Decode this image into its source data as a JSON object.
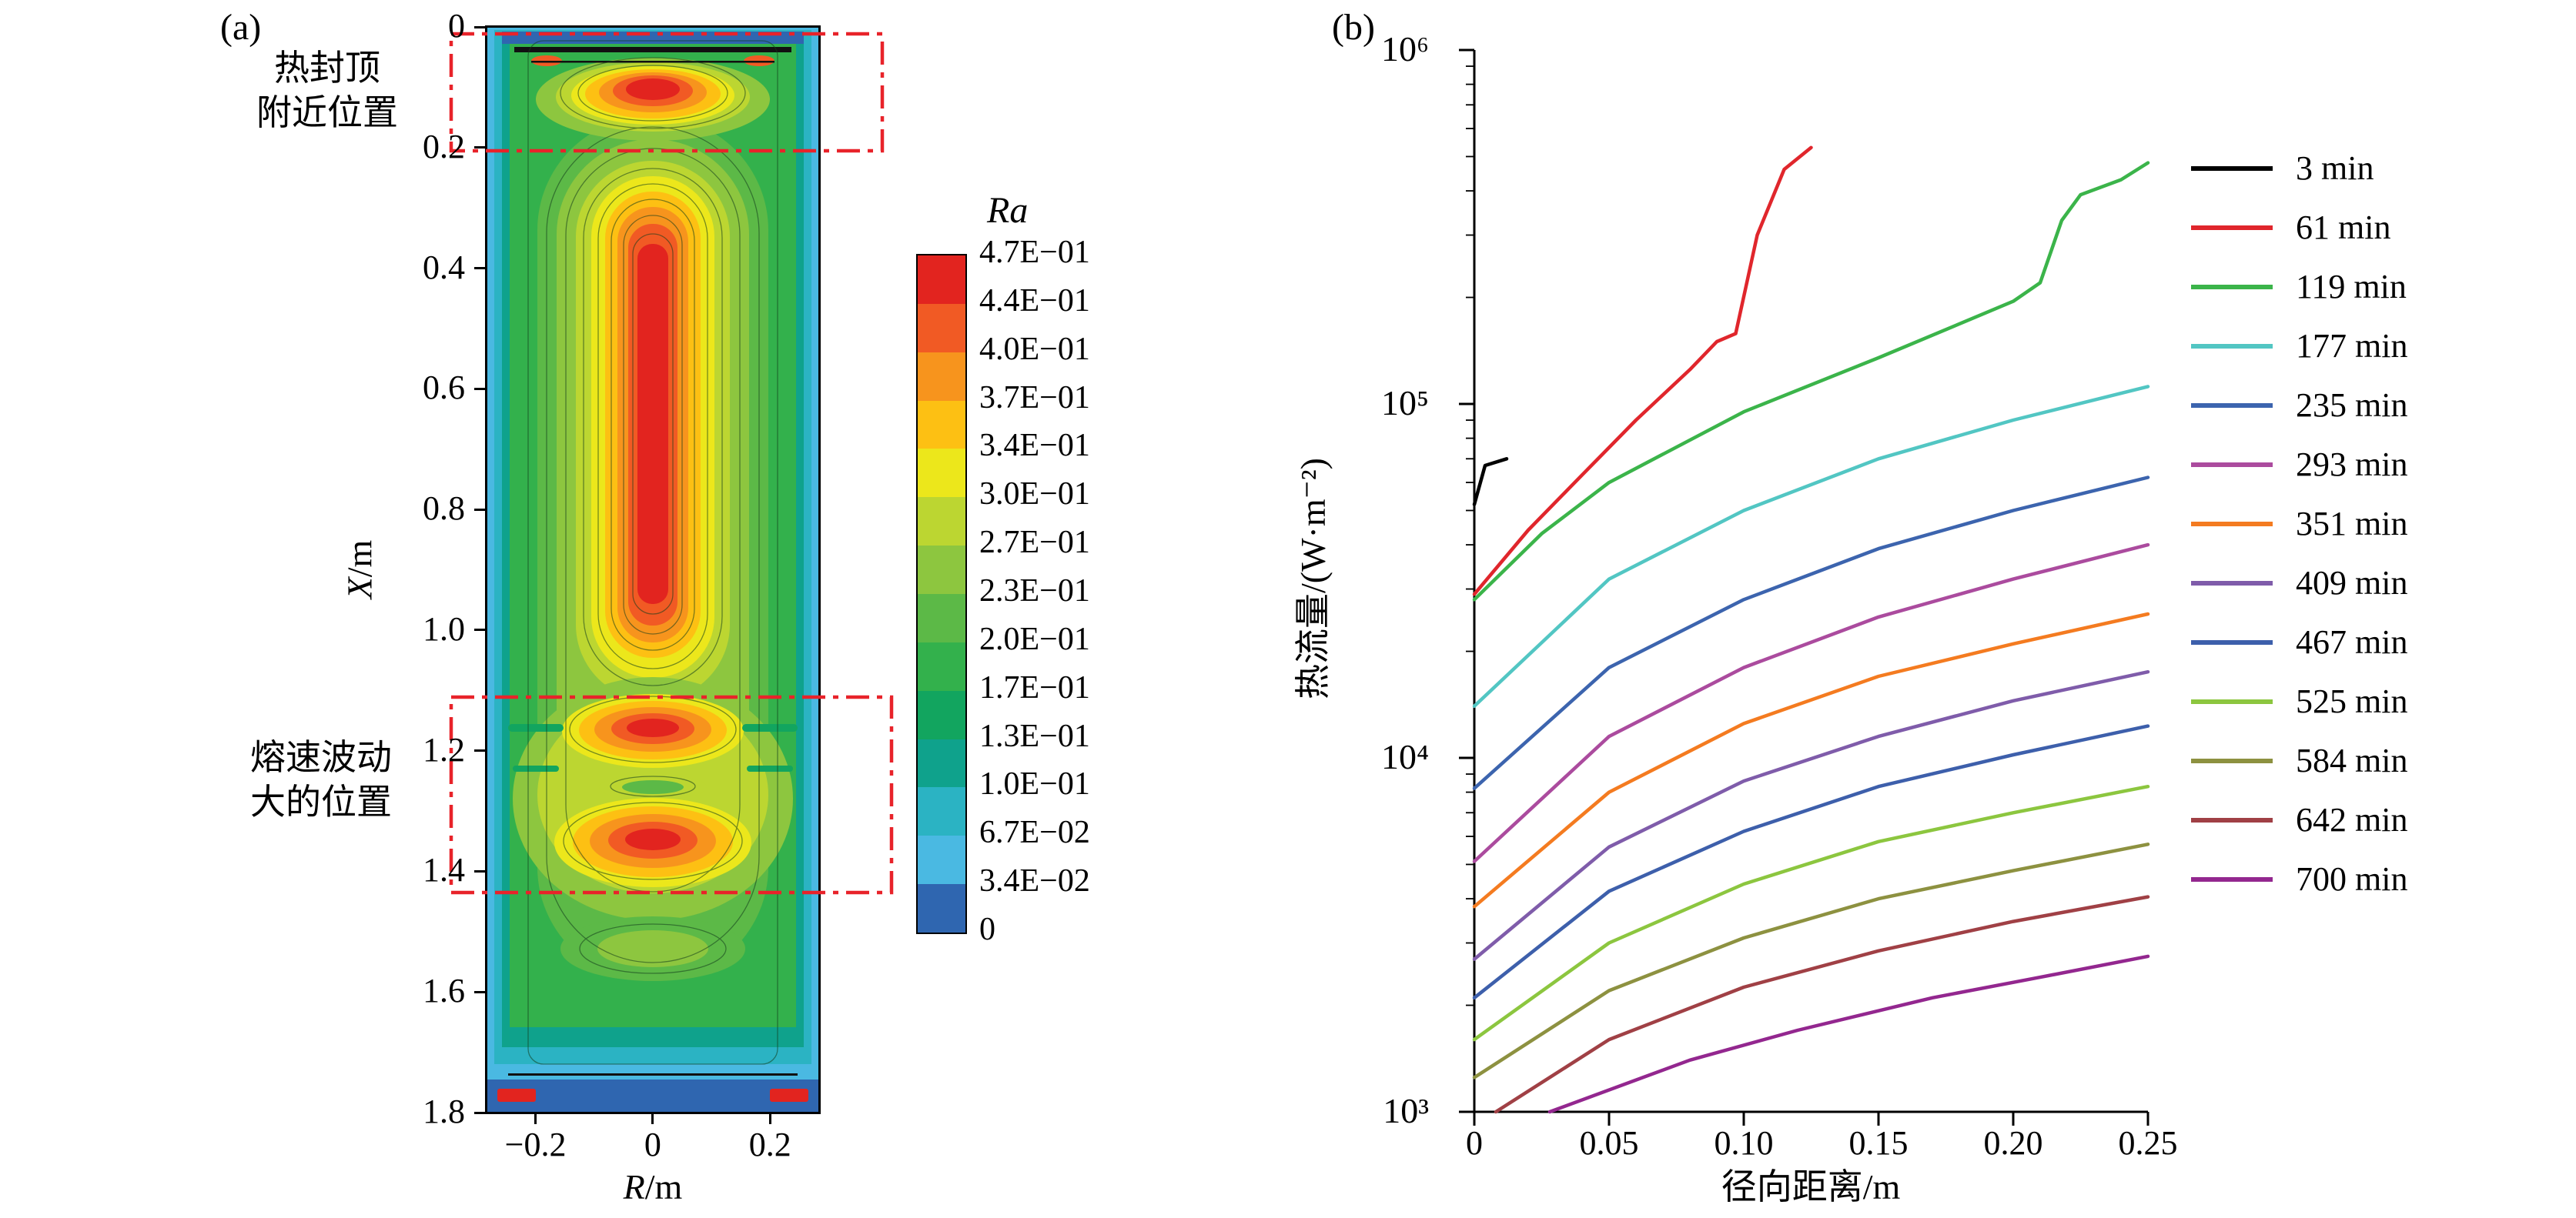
{
  "figure": {
    "panel_a_tag": "(a)",
    "panel_b_tag": "(b)"
  },
  "panelA": {
    "annotations": {
      "top_line1": "热封顶",
      "top_line2": "附近位置",
      "bottom_line1": "熔速波动",
      "bottom_line2": "大的位置"
    },
    "axis": {
      "y_label_var": "X",
      "y_label_unit": "/m",
      "x_label_var": "R",
      "x_label_unit": "/m",
      "y_ticks": [
        "0",
        "0.2",
        "0.4",
        "0.6",
        "0.8",
        "1.0",
        "1.2",
        "1.4",
        "1.6",
        "1.8"
      ],
      "x_ticks": [
        "−0.2",
        "0",
        "0.2"
      ]
    },
    "colorbar": {
      "title": "Ra",
      "labels": [
        "4.7E−01",
        "4.4E−01",
        "4.0E−01",
        "3.7E−01",
        "3.4E−01",
        "3.0E−01",
        "2.7E−01",
        "2.3E−01",
        "2.0E−01",
        "1.7E−01",
        "1.3E−01",
        "1.0E−01",
        "6.7E−02",
        "3.4E−02",
        "0"
      ],
      "colors": [
        "#e2241f",
        "#f15a24",
        "#f7941d",
        "#fdc013",
        "#ece71b",
        "#bcd631",
        "#8dc63f",
        "#5cb947",
        "#33b14c",
        "#12a55f",
        "#0fa28c",
        "#2bb3c3",
        "#4ab9e2",
        "#2f66b0"
      ]
    },
    "highlight_color": "#e8232a"
  },
  "panelB": {
    "axis": {
      "y_label": "热流量/(W·m⁻²)",
      "x_label": "径向距离/m",
      "y_ticks": [
        "10⁶",
        "10⁵",
        "10⁴",
        "10³"
      ],
      "x_ticks": [
        "0",
        "0.05",
        "0.10",
        "0.15",
        "0.20",
        "0.25"
      ]
    }
  },
  "chart_data": [
    {
      "type": "heatmap",
      "style": "filled-contour",
      "panel": "a",
      "title": "",
      "xlabel": "R/m",
      "ylabel": "X/m",
      "x_range": [
        -0.28,
        0.28
      ],
      "y_range": [
        0,
        1.8
      ],
      "y_axis_inverted": true,
      "colorbar_title": "Ra",
      "levels": [
        0,
        0.034,
        0.067,
        0.1,
        0.13,
        0.17,
        0.2,
        0.23,
        0.27,
        0.3,
        0.34,
        0.37,
        0.4,
        0.44,
        0.47
      ],
      "features": [
        "elongated high-Ra red core (Ra≈0.44–0.47) along centerline from X≈0.3 to X≈1.0",
        "hot spot near seal top, X≈0.05–0.2, marked by red dash-dot box (热封顶附近位置)",
        "two high-Ra lobes at X≈1.15 and X≈1.35, marked by red dash-dot box (熔速波动大的位置)",
        "lowest Ra (blue) along side walls, top edge and bottom; red spots at bottom corners"
      ],
      "highlight_boxes_X_range": [
        [
          0.0,
          0.2
        ],
        [
          1.11,
          1.43
        ]
      ]
    },
    {
      "type": "line",
      "panel": "b",
      "title": "",
      "xlabel": "径向距离/m",
      "ylabel": "热流量/(W·m⁻²)",
      "x_range": [
        0,
        0.25
      ],
      "y_scale": "log",
      "y_range": [
        1000,
        1000000
      ],
      "grid": false,
      "legend_position": "right",
      "series": [
        {
          "name": "3 min",
          "color": "#000000",
          "points": [
            [
              0,
              52000
            ],
            [
              0.004,
              67000
            ],
            [
              0.012,
              70000
            ]
          ]
        },
        {
          "name": "61 min",
          "color": "#e0262c",
          "points": [
            [
              0,
              29000
            ],
            [
              0.02,
              44000
            ],
            [
              0.04,
              63000
            ],
            [
              0.06,
              90000
            ],
            [
              0.08,
              125000
            ],
            [
              0.09,
              150000
            ],
            [
              0.097,
              158000
            ],
            [
              0.105,
              300000
            ],
            [
              0.115,
              460000
            ],
            [
              0.125,
              530000
            ]
          ]
        },
        {
          "name": "119 min",
          "color": "#3bb44a",
          "points": [
            [
              0,
              28000
            ],
            [
              0.025,
              43000
            ],
            [
              0.05,
              60000
            ],
            [
              0.1,
              95000
            ],
            [
              0.15,
              135000
            ],
            [
              0.2,
              195000
            ],
            [
              0.21,
              220000
            ],
            [
              0.218,
              330000
            ],
            [
              0.225,
              390000
            ],
            [
              0.24,
              430000
            ],
            [
              0.25,
              480000
            ]
          ]
        },
        {
          "name": "177 min",
          "color": "#52c6c3",
          "points": [
            [
              0,
              14000
            ],
            [
              0.05,
              32000
            ],
            [
              0.1,
              50000
            ],
            [
              0.15,
              70000
            ],
            [
              0.2,
              90000
            ],
            [
              0.25,
              112000
            ]
          ]
        },
        {
          "name": "235 min",
          "color": "#3c64ae",
          "points": [
            [
              0,
              8200
            ],
            [
              0.05,
              18000
            ],
            [
              0.1,
              28000
            ],
            [
              0.15,
              39000
            ],
            [
              0.2,
              50000
            ],
            [
              0.25,
              62000
            ]
          ]
        },
        {
          "name": "293 min",
          "color": "#ab4b9e",
          "points": [
            [
              0,
              5100
            ],
            [
              0.05,
              11500
            ],
            [
              0.1,
              18000
            ],
            [
              0.15,
              25000
            ],
            [
              0.2,
              32000
            ],
            [
              0.25,
              40000
            ]
          ]
        },
        {
          "name": "351 min",
          "color": "#f47b20",
          "points": [
            [
              0,
              3800
            ],
            [
              0.05,
              8000
            ],
            [
              0.1,
              12500
            ],
            [
              0.15,
              17000
            ],
            [
              0.2,
              21000
            ],
            [
              0.25,
              25500
            ]
          ]
        },
        {
          "name": "409 min",
          "color": "#7f5caa",
          "points": [
            [
              0,
              2700
            ],
            [
              0.05,
              5600
            ],
            [
              0.1,
              8600
            ],
            [
              0.15,
              11500
            ],
            [
              0.2,
              14500
            ],
            [
              0.25,
              17500
            ]
          ]
        },
        {
          "name": "467 min",
          "color": "#3d5fab",
          "points": [
            [
              0,
              2100
            ],
            [
              0.05,
              4200
            ],
            [
              0.1,
              6200
            ],
            [
              0.15,
              8300
            ],
            [
              0.2,
              10200
            ],
            [
              0.25,
              12300
            ]
          ]
        },
        {
          "name": "525 min",
          "color": "#8cc63f",
          "points": [
            [
              0,
              1600
            ],
            [
              0.05,
              3000
            ],
            [
              0.1,
              4400
            ],
            [
              0.15,
              5800
            ],
            [
              0.2,
              7000
            ],
            [
              0.25,
              8300
            ]
          ]
        },
        {
          "name": "584 min",
          "color": "#8d9140",
          "points": [
            [
              0,
              1250
            ],
            [
              0.05,
              2200
            ],
            [
              0.1,
              3100
            ],
            [
              0.15,
              4000
            ],
            [
              0.2,
              4800
            ],
            [
              0.25,
              5700
            ]
          ]
        },
        {
          "name": "642 min",
          "color": "#a04045",
          "points": [
            [
              0.008,
              1000
            ],
            [
              0.05,
              1600
            ],
            [
              0.1,
              2250
            ],
            [
              0.15,
              2850
            ],
            [
              0.2,
              3450
            ],
            [
              0.25,
              4050
            ]
          ]
        },
        {
          "name": "700 min",
          "color": "#93278f",
          "points": [
            [
              0.028,
              1000
            ],
            [
              0.08,
              1400
            ],
            [
              0.12,
              1700
            ],
            [
              0.17,
              2100
            ],
            [
              0.21,
              2400
            ],
            [
              0.25,
              2750
            ]
          ]
        }
      ]
    }
  ]
}
